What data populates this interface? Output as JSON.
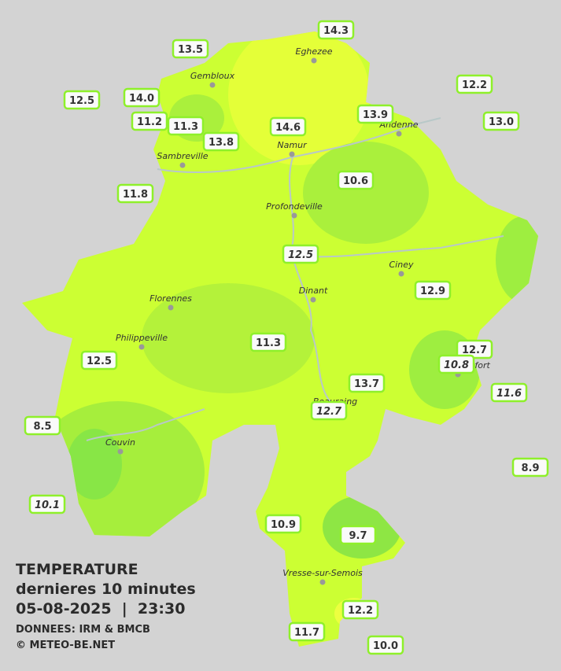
{
  "title": {
    "line1": "TEMPERATURE",
    "line2": "dernieres 10 minutes",
    "line3": "05-08-2025  |  23:30",
    "source": "DONNEES: IRM & BMCB",
    "credit": "© METEO-BE.NET"
  },
  "cities": [
    {
      "name": "Eghezee"
    },
    {
      "name": "Gembloux"
    },
    {
      "name": "Andenne"
    },
    {
      "name": "Namur"
    },
    {
      "name": "Sambreville"
    },
    {
      "name": "Profondeville"
    },
    {
      "name": "Ciney"
    },
    {
      "name": "Dinant"
    },
    {
      "name": "Florennes"
    },
    {
      "name": "Philippeville"
    },
    {
      "name": "Beauraing"
    },
    {
      "name": "Rochefort"
    },
    {
      "name": "Couvin"
    },
    {
      "name": "Vresse-sur-Semois"
    }
  ],
  "readings": [
    {
      "value": "14.3",
      "italic": false
    },
    {
      "value": "13.5",
      "italic": false
    },
    {
      "value": "12.2",
      "italic": false
    },
    {
      "value": "12.5",
      "italic": false
    },
    {
      "value": "14.0",
      "italic": false
    },
    {
      "value": "11.2",
      "italic": false
    },
    {
      "value": "11.3",
      "italic": false
    },
    {
      "value": "13.9",
      "italic": false
    },
    {
      "value": "13.0",
      "italic": false
    },
    {
      "value": "14.6",
      "italic": false
    },
    {
      "value": "13.8",
      "italic": false
    },
    {
      "value": "10.6",
      "italic": false
    },
    {
      "value": "11.8",
      "italic": false
    },
    {
      "value": "12.5",
      "italic": true
    },
    {
      "value": "12.9",
      "italic": false
    },
    {
      "value": "11.3",
      "italic": false
    },
    {
      "value": "12.7",
      "italic": false
    },
    {
      "value": "10.8",
      "italic": true
    },
    {
      "value": "12.5",
      "italic": false
    },
    {
      "value": "13.7",
      "italic": false
    },
    {
      "value": "11.6",
      "italic": true
    },
    {
      "value": "12.7",
      "italic": true
    },
    {
      "value": "8.5",
      "italic": false
    },
    {
      "value": "8.9",
      "italic": false
    },
    {
      "value": "10.1",
      "italic": true
    },
    {
      "value": "10.9",
      "italic": false
    },
    {
      "value": "9.7",
      "italic": false
    },
    {
      "value": "12.2",
      "italic": false
    },
    {
      "value": "11.7",
      "italic": false
    },
    {
      "value": "10.0",
      "italic": false
    }
  ]
}
